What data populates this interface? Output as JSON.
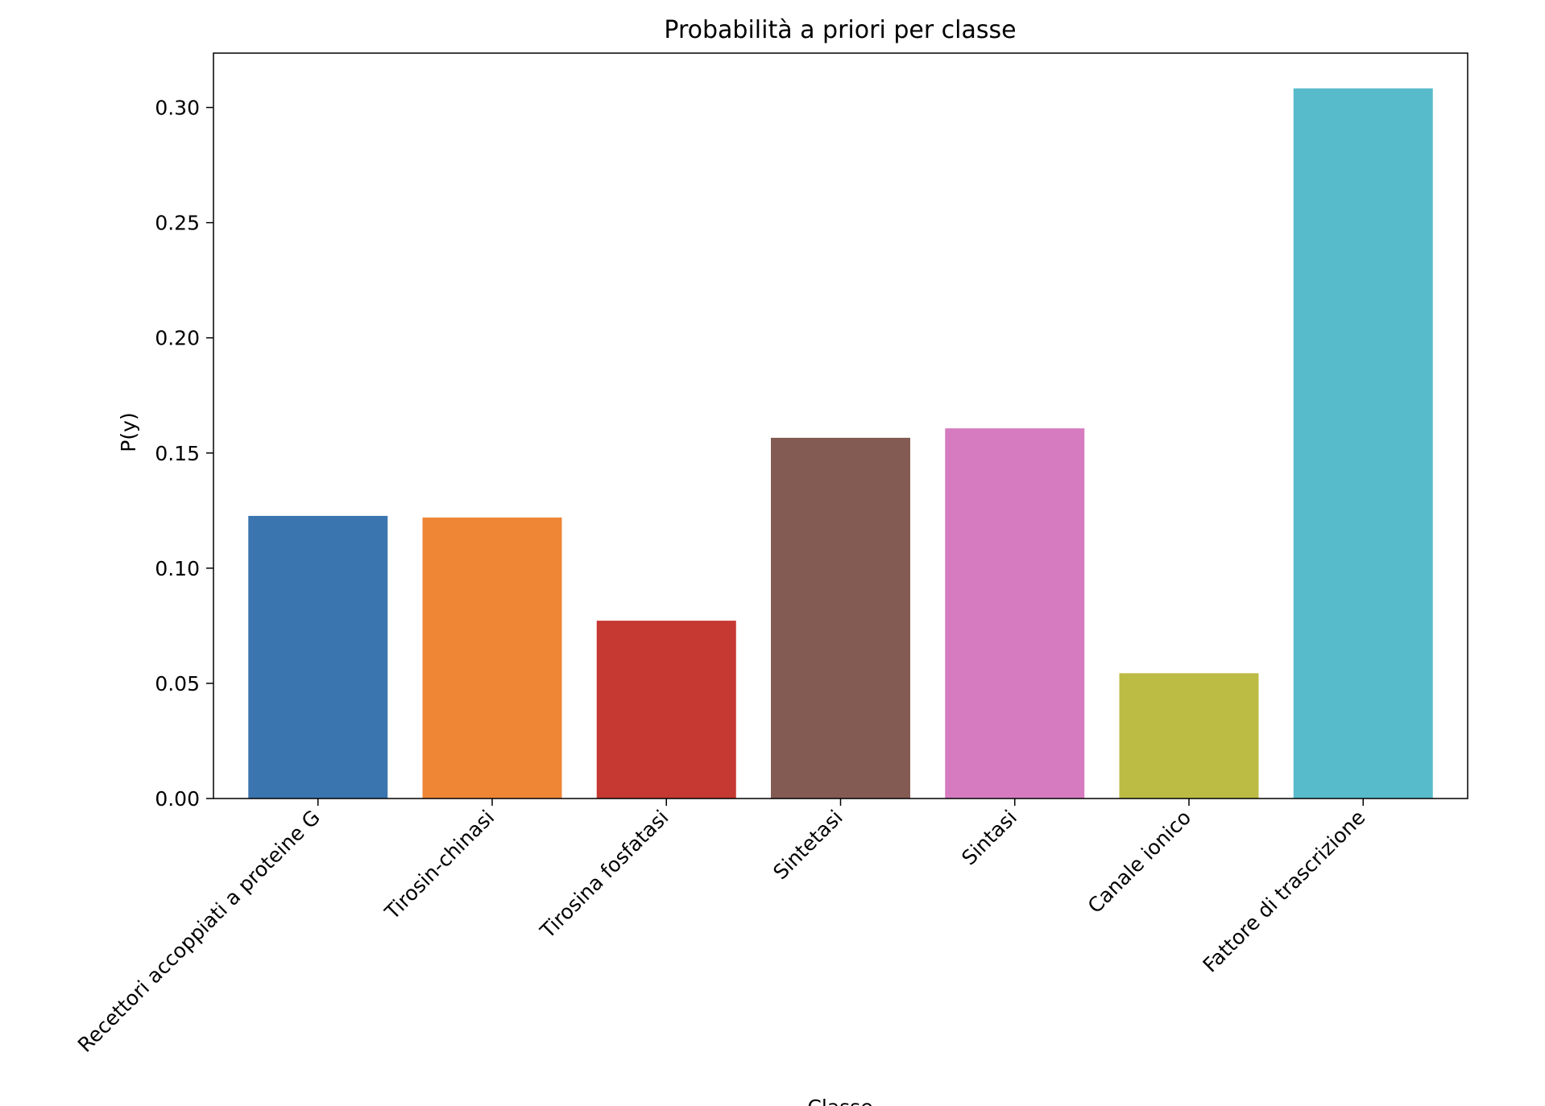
{
  "chart_data": {
    "type": "bar",
    "title": "Probabilità a priori per classe",
    "xlabel": "Classe",
    "ylabel": "P(y)",
    "categories": [
      "Recettori accoppiati a proteine G",
      "Tirosin-chinasi",
      "Tirosina fosfatasi",
      "Sintetasi",
      "Sintasi",
      "Canale ionico",
      "Fattore di trascrizione"
    ],
    "values": [
      0.1227,
      0.122,
      0.0772,
      0.1566,
      0.1607,
      0.0544,
      0.3083
    ],
    "colors": [
      "#3b75af",
      "#ef8636",
      "#c53932",
      "#845b53",
      "#d67bbf",
      "#bcbc45",
      "#58bbcc"
    ],
    "ylim": [
      0,
      0.3236
    ],
    "yticks": [
      0.0,
      0.05,
      0.1,
      0.15,
      0.2,
      0.25,
      0.3
    ],
    "ytick_labels": [
      "0.00",
      "0.05",
      "0.10",
      "0.15",
      "0.20",
      "0.25",
      "0.30"
    ],
    "grid": false,
    "legend": false
  }
}
